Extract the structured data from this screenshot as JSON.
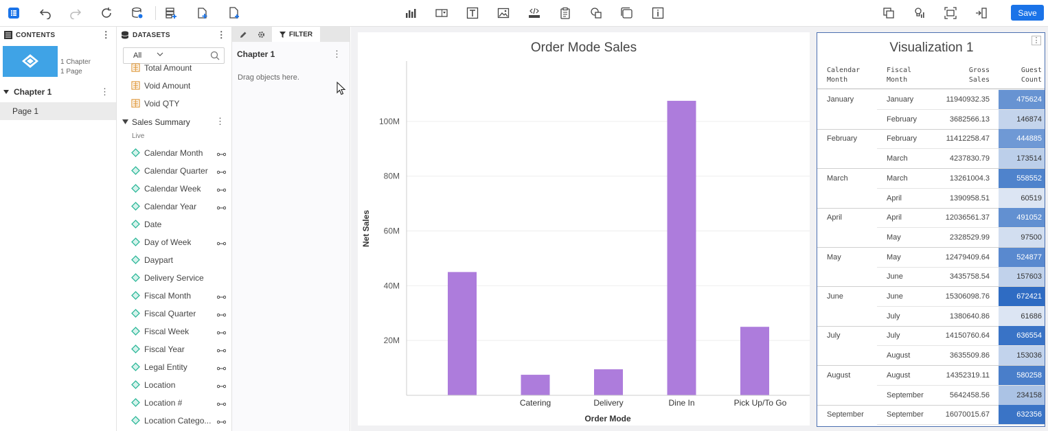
{
  "toolbar": {
    "save_label": "Save",
    "icons": [
      "contents-icon",
      "undo-icon",
      "redo-icon",
      "refresh-icon",
      "database-settings-icon",
      "add-dataset-icon",
      "add-page-icon",
      "add-report-icon",
      "bar-chart-icon",
      "dropdown-control-icon",
      "text-icon",
      "image-icon",
      "html-icon",
      "clipboard-icon",
      "shapes-icon",
      "window-icon",
      "info-icon",
      "copy-layers-icon",
      "lightbulb-chart-icon",
      "screenshot-icon",
      "insert-column-icon"
    ]
  },
  "contents": {
    "header": "CONTENTS",
    "thumb_meta": [
      "1 Chapter",
      "1 Page"
    ],
    "chapter": "Chapter 1",
    "page": "Page 1"
  },
  "datasets": {
    "header": "DATASETS",
    "filter_value": "All",
    "top_items": [
      {
        "label": "Total Amount",
        "type": "measure"
      },
      {
        "label": "Void Amount",
        "type": "measure"
      },
      {
        "label": "Void QTY",
        "type": "measure"
      }
    ],
    "group": {
      "label": "Sales Summary",
      "status": "Live",
      "items": [
        {
          "label": "Calendar Month",
          "link": true
        },
        {
          "label": "Calendar Quarter",
          "link": true
        },
        {
          "label": "Calendar Week",
          "link": true
        },
        {
          "label": "Calendar Year",
          "link": true
        },
        {
          "label": "Date",
          "link": false
        },
        {
          "label": "Day of Week",
          "link": true
        },
        {
          "label": "Daypart",
          "link": false
        },
        {
          "label": "Delivery Service",
          "link": false
        },
        {
          "label": "Fiscal Month",
          "link": true
        },
        {
          "label": "Fiscal Quarter",
          "link": true
        },
        {
          "label": "Fiscal Week",
          "link": true
        },
        {
          "label": "Fiscal Year",
          "link": true
        },
        {
          "label": "Legal Entity",
          "link": true
        },
        {
          "label": "Location",
          "link": true
        },
        {
          "label": "Location #",
          "link": true
        },
        {
          "label": "Location Catego...",
          "link": true
        }
      ]
    }
  },
  "filter_panel": {
    "tab_label": "FILTER",
    "chapter": "Chapter 1",
    "hint": "Drag objects here."
  },
  "chart_data": {
    "type": "bar",
    "title": "Order Mode Sales",
    "xlabel": "Order Mode",
    "ylabel": "Net Sales",
    "categories": [
      "",
      "Catering",
      "Delivery",
      "Dine In",
      "Pick Up/To Go"
    ],
    "values": [
      45000000,
      7500000,
      9500000,
      107500000,
      25000000
    ],
    "yticks": [
      20000000,
      40000000,
      60000000,
      80000000,
      100000000
    ],
    "ytick_labels": [
      "20M",
      "40M",
      "60M",
      "80M",
      "100M"
    ],
    "ylim": [
      0,
      122000000
    ],
    "bar_color": "#ad7cdc",
    "grid": true
  },
  "table": {
    "title": "Visualization 1",
    "headers": [
      [
        "Calendar",
        "Month"
      ],
      [
        "Fiscal",
        "Month"
      ],
      [
        "Gross",
        "Sales"
      ],
      [
        "Guest",
        "Count"
      ]
    ],
    "rows": [
      {
        "cal": "January",
        "fiscal": "January",
        "gross": "11940932.35",
        "guest": "475624",
        "g": 475624
      },
      {
        "cal": "",
        "fiscal": "February",
        "gross": "3682566.13",
        "guest": "146874",
        "g": 146874
      },
      {
        "cal": "February",
        "fiscal": "February",
        "gross": "11412258.47",
        "guest": "444885",
        "g": 444885
      },
      {
        "cal": "",
        "fiscal": "March",
        "gross": "4237830.79",
        "guest": "173514",
        "g": 173514
      },
      {
        "cal": "March",
        "fiscal": "March",
        "gross": "13261004.3",
        "guest": "558552",
        "g": 558552
      },
      {
        "cal": "",
        "fiscal": "April",
        "gross": "1390958.51",
        "guest": "60519",
        "g": 60519
      },
      {
        "cal": "April",
        "fiscal": "April",
        "gross": "12036561.37",
        "guest": "491052",
        "g": 491052
      },
      {
        "cal": "",
        "fiscal": "May",
        "gross": "2328529.99",
        "guest": "97500",
        "g": 97500
      },
      {
        "cal": "May",
        "fiscal": "May",
        "gross": "12479409.64",
        "guest": "524877",
        "g": 524877
      },
      {
        "cal": "",
        "fiscal": "June",
        "gross": "3435758.54",
        "guest": "157603",
        "g": 157603
      },
      {
        "cal": "June",
        "fiscal": "June",
        "gross": "15306098.76",
        "guest": "672421",
        "g": 672421
      },
      {
        "cal": "",
        "fiscal": "July",
        "gross": "1380640.86",
        "guest": "61686",
        "g": 61686
      },
      {
        "cal": "July",
        "fiscal": "July",
        "gross": "14150760.64",
        "guest": "636554",
        "g": 636554
      },
      {
        "cal": "",
        "fiscal": "August",
        "gross": "3635509.86",
        "guest": "153036",
        "g": 153036
      },
      {
        "cal": "August",
        "fiscal": "August",
        "gross": "14352319.11",
        "guest": "580258",
        "g": 580258
      },
      {
        "cal": "",
        "fiscal": "September",
        "gross": "5642458.56",
        "guest": "234158",
        "g": 234158
      },
      {
        "cal": "September",
        "fiscal": "September",
        "gross": "16070015.67",
        "guest": "632356",
        "g": 632356
      }
    ],
    "heat_low": "#dce5f3",
    "heat_high": "#2f6cc3"
  }
}
